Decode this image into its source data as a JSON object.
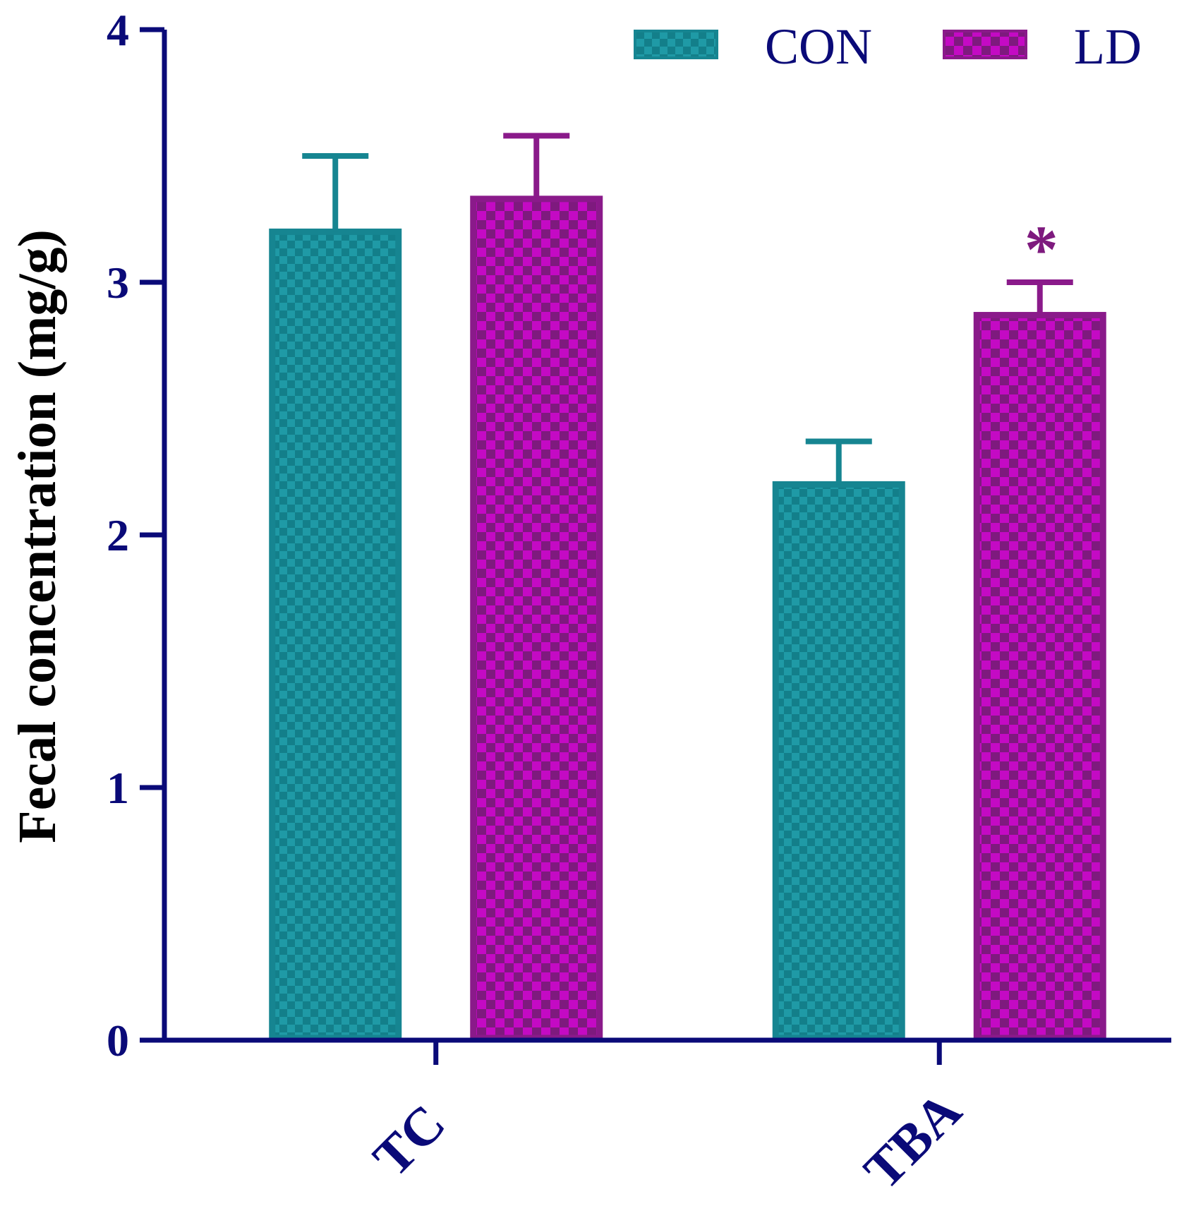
{
  "chart_data": {
    "type": "bar",
    "categories": [
      "TC",
      "TBA"
    ],
    "series": [
      {
        "name": "CON",
        "values": [
          3.2,
          2.2
        ],
        "errors": [
          0.3,
          0.17
        ]
      },
      {
        "name": "LD",
        "values": [
          3.33,
          2.87
        ],
        "errors": [
          0.25,
          0.13
        ]
      }
    ],
    "significance": [
      {
        "category": "TBA",
        "series": "LD",
        "marker": "*"
      }
    ],
    "xlabel": "",
    "ylabel": "Fecal concentration (mg/g)",
    "ylim": [
      0,
      4
    ],
    "yticks": [
      0,
      1,
      2,
      3,
      4
    ],
    "grid": false,
    "legend_position": "top-right",
    "colors": {
      "axis": "#0a0a78",
      "con_fill": "#1f9aa6",
      "con_fill_dark": "#137f8a",
      "con_stroke": "#168591",
      "ld_fill": "#c40ac4",
      "ld_fill_dark": "#7e1a7e",
      "ld_stroke": "#8a1a8a",
      "star": "#7e1a7e"
    }
  }
}
